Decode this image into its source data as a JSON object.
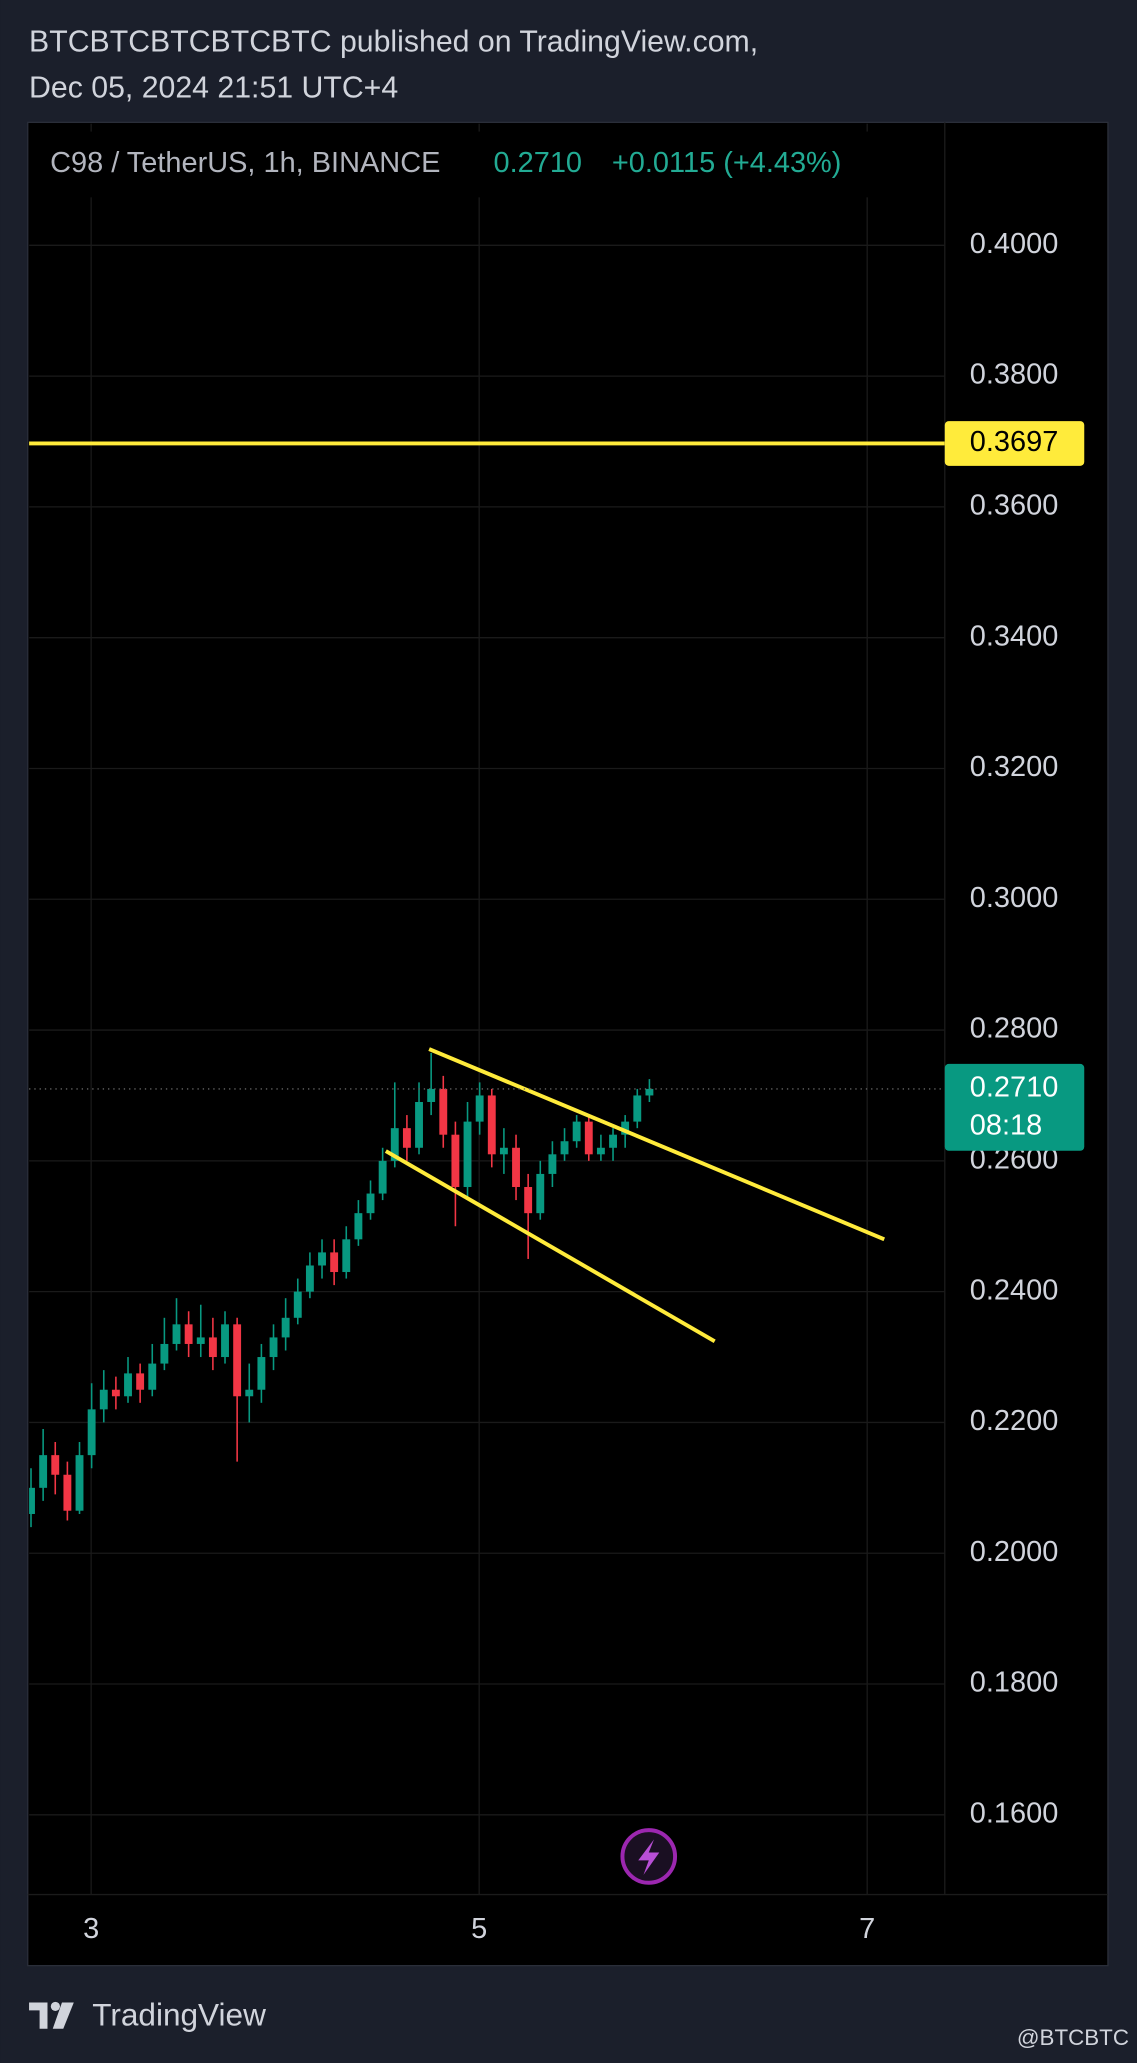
{
  "header": {
    "line1": "BTCBTCBTCBTCBTC published on TradingView.com,",
    "line2": "Dec 05, 2024 21:51 UTC+4"
  },
  "footer": {
    "brand": "TradingView",
    "handle": "@BTCBTC"
  },
  "chart_data": {
    "type": "candlestick",
    "symbol": "C98 / TetherUS, 1h, BINANCE",
    "last_price": {
      "value": 0.271,
      "label": "0.2710"
    },
    "change": "+0.0115 (+4.43%)",
    "countdown": "08:18",
    "up_color": "#089981",
    "down_color": "#f23645",
    "x": [
      2.69,
      2.7525,
      2.815,
      2.8775,
      2.94,
      3.0025,
      3.065,
      3.1275,
      3.19,
      3.2525,
      3.315,
      3.3775,
      3.44,
      3.5025,
      3.565,
      3.6275,
      3.69,
      3.7525,
      3.815,
      3.8775,
      3.94,
      4.0025,
      4.065,
      4.1275,
      4.19,
      4.2525,
      4.315,
      4.3775,
      4.44,
      4.5025,
      4.565,
      4.6275,
      4.69,
      4.7525,
      4.815,
      4.8775,
      4.94,
      5.0025,
      5.065,
      5.1275,
      5.19,
      5.2525,
      5.315,
      5.3775,
      5.44,
      5.5025,
      5.565,
      5.6275,
      5.69,
      5.7525,
      5.815,
      5.8775
    ],
    "open": [
      0.206,
      0.21,
      0.215,
      0.212,
      0.2065,
      0.215,
      0.222,
      0.225,
      0.224,
      0.2275,
      0.225,
      0.229,
      0.232,
      0.235,
      0.232,
      0.233,
      0.23,
      0.235,
      0.224,
      0.225,
      0.23,
      0.233,
      0.236,
      0.24,
      0.244,
      0.246,
      0.243,
      0.248,
      0.252,
      0.255,
      0.26,
      0.265,
      0.262,
      0.269,
      0.271,
      0.264,
      0.256,
      0.266,
      0.27,
      0.261,
      0.262,
      0.256,
      0.252,
      0.258,
      0.261,
      0.263,
      0.266,
      0.261,
      0.262,
      0.264,
      0.266,
      0.27
    ],
    "high": [
      0.213,
      0.219,
      0.217,
      0.214,
      0.217,
      0.226,
      0.228,
      0.227,
      0.23,
      0.229,
      0.232,
      0.236,
      0.239,
      0.237,
      0.238,
      0.236,
      0.237,
      0.236,
      0.229,
      0.232,
      0.235,
      0.239,
      0.242,
      0.246,
      0.248,
      0.248,
      0.25,
      0.254,
      0.257,
      0.262,
      0.272,
      0.267,
      0.272,
      0.2765,
      0.273,
      0.266,
      0.269,
      0.272,
      0.271,
      0.265,
      0.264,
      0.258,
      0.26,
      0.263,
      0.265,
      0.267,
      0.267,
      0.264,
      0.265,
      0.267,
      0.271,
      0.2725
    ],
    "low": [
      0.204,
      0.208,
      0.209,
      0.205,
      0.206,
      0.213,
      0.22,
      0.222,
      0.223,
      0.223,
      0.224,
      0.228,
      0.231,
      0.23,
      0.23,
      0.228,
      0.229,
      0.214,
      0.22,
      0.223,
      0.228,
      0.231,
      0.235,
      0.239,
      0.242,
      0.241,
      0.242,
      0.247,
      0.251,
      0.254,
      0.259,
      0.26,
      0.261,
      0.267,
      0.262,
      0.25,
      0.254,
      0.264,
      0.259,
      0.258,
      0.254,
      0.245,
      0.251,
      0.256,
      0.26,
      0.262,
      0.26,
      0.26,
      0.26,
      0.262,
      0.265,
      0.269
    ],
    "close": [
      0.21,
      0.215,
      0.212,
      0.2065,
      0.215,
      0.222,
      0.225,
      0.224,
      0.2275,
      0.225,
      0.229,
      0.232,
      0.235,
      0.232,
      0.233,
      0.23,
      0.235,
      0.224,
      0.225,
      0.23,
      0.233,
      0.236,
      0.24,
      0.244,
      0.246,
      0.243,
      0.248,
      0.252,
      0.255,
      0.26,
      0.265,
      0.262,
      0.269,
      0.271,
      0.264,
      0.256,
      0.266,
      0.27,
      0.261,
      0.262,
      0.256,
      0.252,
      0.258,
      0.261,
      0.263,
      0.266,
      0.261,
      0.262,
      0.264,
      0.266,
      0.27,
      0.271
    ],
    "hline": {
      "value": 0.3697,
      "color": "#ffeb3b"
    },
    "trend_lines": [
      {
        "x": [
          4.742,
          7.088
        ],
        "y": [
          0.2771,
          0.248
        ],
        "color": "#ffeb3b"
      },
      {
        "x": [
          4.519,
          6.214
        ],
        "y": [
          0.2615,
          0.2324
        ],
        "color": "#ffeb3b"
      }
    ],
    "xlim": [
      2.68,
      7.4
    ],
    "xticks": [
      3,
      5,
      7
    ],
    "ylim": [
      0.1478,
      0.4186
    ],
    "yticks": [
      {
        "value": 0.16,
        "label": "0.1600"
      },
      {
        "value": 0.18,
        "label": "0.1800"
      },
      {
        "value": 0.2,
        "label": "0.2000"
      },
      {
        "value": 0.22,
        "label": "0.2200"
      },
      {
        "value": 0.24,
        "label": "0.2400"
      },
      {
        "value": 0.26,
        "label": "0.2600"
      },
      {
        "value": 0.28,
        "label": "0.2800"
      },
      {
        "value": 0.3,
        "label": "0.3000"
      },
      {
        "value": 0.32,
        "label": "0.3200"
      },
      {
        "value": 0.34,
        "label": "0.3400"
      },
      {
        "value": 0.36,
        "label": "0.3600"
      },
      {
        "value": 0.38,
        "label": "0.3800"
      },
      {
        "value": 0.4,
        "label": "0.4000"
      }
    ],
    "grid": true
  }
}
